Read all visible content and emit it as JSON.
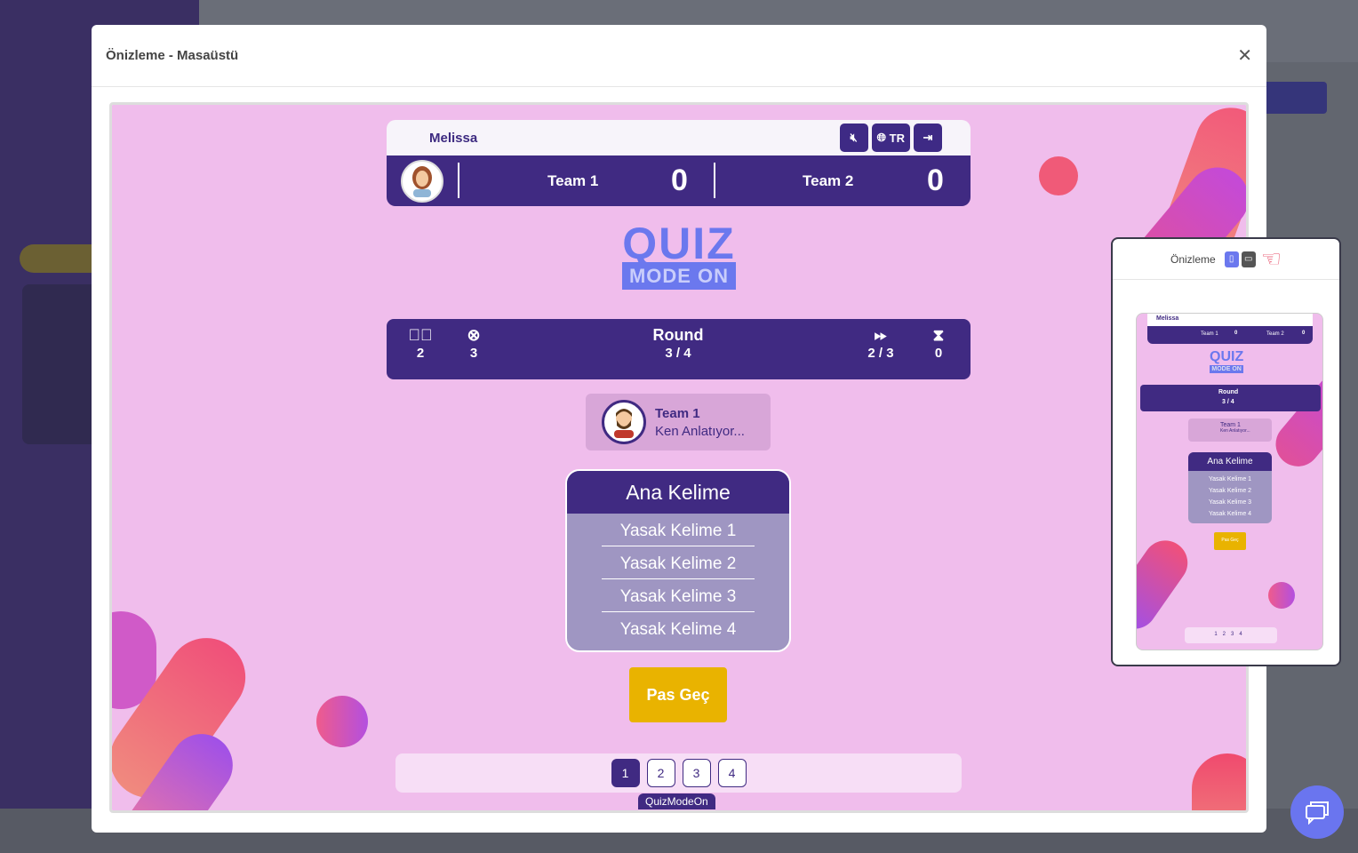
{
  "modal": {
    "title": "Önizleme - Masaüstü",
    "close_icon": "close-icon"
  },
  "game": {
    "player": "Melissa",
    "controls": {
      "mute_icon": "volume-mute-icon",
      "language": "TR",
      "exit_icon": "sign-out-icon"
    },
    "teams": [
      {
        "name": "Team 1",
        "score": "0"
      },
      {
        "name": "Team 2",
        "score": "0"
      }
    ],
    "logo": {
      "line1": "QUIZ",
      "line2": "MODE ON"
    },
    "stats": {
      "correct": "2",
      "wrong": "3",
      "round_label": "Round",
      "round": "3 / 4",
      "pass": "2 / 3",
      "time": "0"
    },
    "turn": {
      "team": "Team 1",
      "status": "Ken Anlatıyor..."
    },
    "card": {
      "main_word": "Ana Kelime",
      "forbidden": [
        "Yasak Kelime 1",
        "Yasak Kelime 2",
        "Yasak Kelime 3",
        "Yasak Kelime 4"
      ]
    },
    "pass_button": "Pas Geç",
    "pages": [
      "1",
      "2",
      "3",
      "4"
    ],
    "active_page": "1",
    "brand": "QuizModeOn"
  },
  "mobile_preview": {
    "title": "Önizleme"
  },
  "colors": {
    "primary": "#402a82",
    "pink_bg": "#f0bdec",
    "accent": "#e9b300",
    "logo": "#6b78ee"
  }
}
